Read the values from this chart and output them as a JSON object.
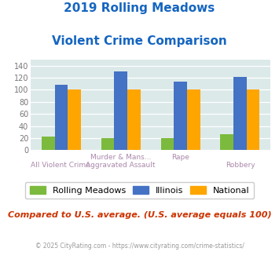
{
  "title_line1": "2019 Rolling Meadows",
  "title_line2": "Violent Crime Comparison",
  "x_labels_top": [
    "",
    "Murder & Mans...",
    "Rape",
    ""
  ],
  "x_labels_bottom": [
    "All Violent Crime",
    "Aggravated Assault",
    "",
    "Robbery"
  ],
  "rolling_meadows": [
    22,
    20,
    20,
    26
  ],
  "illinois": [
    108,
    130,
    113,
    121
  ],
  "national": [
    100,
    100,
    100,
    100
  ],
  "colors": {
    "rolling_meadows": "#7cba3d",
    "illinois": "#4472c4",
    "national": "#ffa500"
  },
  "ylim": [
    0,
    150
  ],
  "yticks": [
    0,
    20,
    40,
    60,
    80,
    100,
    120,
    140
  ],
  "background_color": "#dce9e9",
  "title_color": "#1565c0",
  "annotation": "Compared to U.S. average. (U.S. average equals 100)",
  "annotation_color": "#cc3300",
  "footer": "© 2025 CityRating.com - https://www.cityrating.com/crime-statistics/",
  "footer_color": "#999999",
  "footer_link_color": "#4472c4",
  "legend_labels": [
    "Rolling Meadows",
    "Illinois",
    "National"
  ]
}
